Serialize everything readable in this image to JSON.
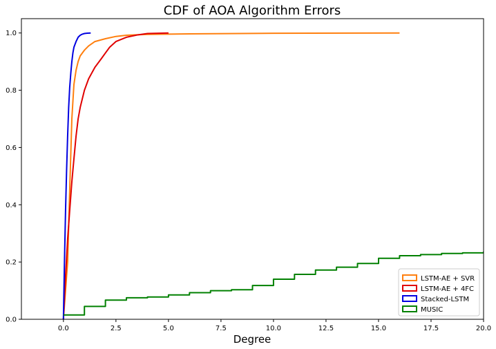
{
  "chart_data": {
    "type": "line",
    "title": "CDF of AOA Algorithm Errors",
    "xlabel": "Degree",
    "ylabel": "",
    "xlim": [
      -2.0,
      20.0
    ],
    "ylim": [
      0.0,
      1.05
    ],
    "xticks": [
      0.0,
      2.5,
      5.0,
      7.5,
      10.0,
      12.5,
      15.0,
      17.5,
      20.0
    ],
    "xtick_labels": [
      "0.0",
      "2.5",
      "5.0",
      "7.5",
      "10.0",
      "12.5",
      "15.0",
      "17.5",
      "20.0"
    ],
    "yticks": [
      0.0,
      0.2,
      0.4,
      0.6,
      0.8,
      1.0
    ],
    "ytick_labels": [
      "0.0",
      "0.2",
      "0.4",
      "0.6",
      "0.8",
      "1.0"
    ],
    "legend_position": "bottom-right",
    "series": [
      {
        "name": "LSTM-AE + SVR",
        "color": "#ff7f0e",
        "step": false,
        "x": [
          0.0,
          0.2,
          0.3,
          0.4,
          0.5,
          0.6,
          0.7,
          0.8,
          1.0,
          1.2,
          1.5,
          2.0,
          2.5,
          3.0,
          4.0,
          6.0,
          10.0,
          16.0
        ],
        "y": [
          0.0,
          0.2,
          0.45,
          0.7,
          0.82,
          0.87,
          0.9,
          0.92,
          0.94,
          0.955,
          0.97,
          0.98,
          0.988,
          0.992,
          0.995,
          0.997,
          0.999,
          1.0
        ]
      },
      {
        "name": "LSTM-AE + 4FC",
        "color": "#e00000",
        "step": false,
        "x": [
          0.0,
          0.1,
          0.2,
          0.3,
          0.4,
          0.5,
          0.6,
          0.7,
          0.8,
          1.0,
          1.2,
          1.5,
          1.8,
          2.0,
          2.2,
          2.5,
          3.0,
          3.5,
          4.0,
          5.0
        ],
        "y": [
          0.0,
          0.15,
          0.28,
          0.38,
          0.48,
          0.56,
          0.64,
          0.7,
          0.74,
          0.8,
          0.84,
          0.88,
          0.91,
          0.93,
          0.95,
          0.97,
          0.985,
          0.993,
          0.998,
          1.0
        ]
      },
      {
        "name": "Stacked-LSTM",
        "color": "#0000e0",
        "step": false,
        "x": [
          0.0,
          0.05,
          0.1,
          0.15,
          0.2,
          0.25,
          0.3,
          0.35,
          0.4,
          0.45,
          0.5,
          0.6,
          0.7,
          0.8,
          0.9,
          1.0,
          1.1,
          1.3
        ],
        "y": [
          0.0,
          0.2,
          0.38,
          0.52,
          0.64,
          0.74,
          0.81,
          0.86,
          0.9,
          0.93,
          0.95,
          0.97,
          0.985,
          0.992,
          0.996,
          0.998,
          0.999,
          1.0
        ]
      },
      {
        "name": "MUSIC",
        "color": "#008000",
        "step": true,
        "x": [
          0,
          1,
          2,
          3,
          4,
          5,
          6,
          7,
          8,
          9,
          10,
          11,
          12,
          13,
          14,
          15,
          16,
          17,
          18,
          19,
          20
        ],
        "y": [
          0.015,
          0.045,
          0.067,
          0.075,
          0.078,
          0.085,
          0.093,
          0.1,
          0.103,
          0.118,
          0.14,
          0.157,
          0.172,
          0.182,
          0.195,
          0.213,
          0.222,
          0.226,
          0.23,
          0.232,
          0.235
        ]
      }
    ]
  }
}
